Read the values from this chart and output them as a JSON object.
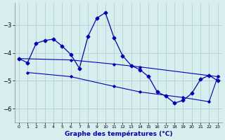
{
  "title": "Graphe des températures (°C)",
  "x_ticks": [
    0,
    1,
    2,
    3,
    4,
    5,
    6,
    7,
    8,
    9,
    10,
    11,
    12,
    13,
    14,
    15,
    16,
    17,
    18,
    19,
    20,
    21,
    22,
    23
  ],
  "ylim": [
    -6.5,
    -2.2
  ],
  "xlim": [
    -0.5,
    23.5
  ],
  "yticks": [
    -6,
    -5,
    -4,
    -3
  ],
  "main_x": [
    0,
    1,
    2,
    3,
    4,
    5,
    6,
    7,
    8,
    9,
    10,
    11,
    12,
    13,
    14,
    15,
    16,
    17,
    18,
    19,
    20,
    21,
    22,
    23
  ],
  "main_y": [
    -4.2,
    -4.35,
    -3.65,
    -3.55,
    -3.5,
    -3.75,
    -4.05,
    -4.55,
    -3.4,
    -2.75,
    -2.55,
    -3.45,
    -4.1,
    -4.45,
    -4.6,
    -4.85,
    -5.4,
    -5.55,
    -5.8,
    -5.7,
    -5.45,
    -4.95,
    -4.8,
    -5.0
  ],
  "upper_trend_x": [
    0,
    6,
    11,
    14,
    23
  ],
  "upper_trend_y": [
    -4.2,
    -4.25,
    -4.4,
    -4.5,
    -4.85
  ],
  "lower_trend_x": [
    1,
    6,
    11,
    14,
    19,
    22,
    23
  ],
  "lower_trend_y": [
    -4.7,
    -4.85,
    -5.2,
    -5.4,
    -5.6,
    -5.75,
    -4.85
  ],
  "line_color": "#0000bb",
  "bg_color": "#d8eeee",
  "grid_color": "#a8cccc"
}
